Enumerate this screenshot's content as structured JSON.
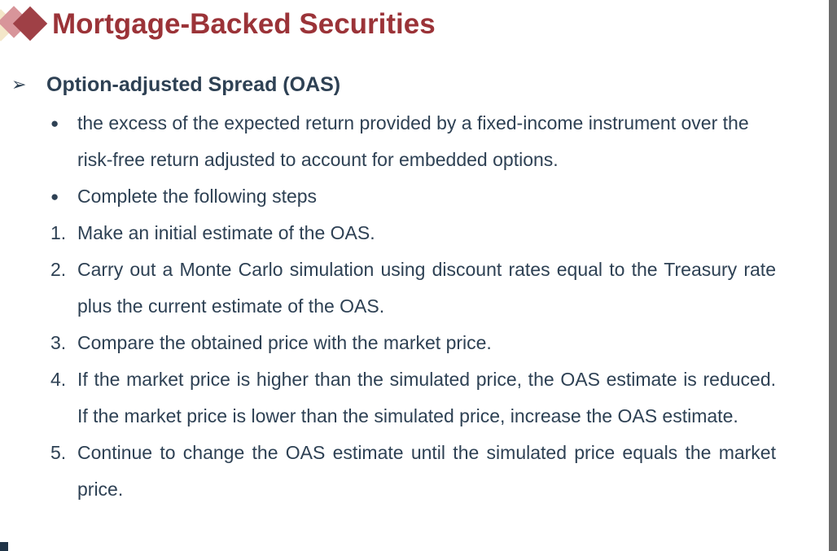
{
  "slide": {
    "title": "Mortgage-Backed Securities",
    "subheading": {
      "marker": "➢",
      "text": "Option-adjusted Spread (OAS)"
    },
    "list": [
      {
        "marker": "●",
        "text": "the excess of the expected return provided by a fixed-income instrument over the risk-free return adjusted to account for embedded options."
      },
      {
        "marker": "●",
        "text": "Complete the following steps"
      },
      {
        "marker": "1.",
        "text": "Make an initial estimate of the OAS."
      },
      {
        "marker": "2.",
        "text": "Carry out a Monte Carlo simulation using discount rates equal to the Treasury rate plus the current estimate of the OAS."
      },
      {
        "marker": "3.",
        "text": "Compare the obtained price with the market price."
      },
      {
        "marker": "4.",
        "text": "If the market price is higher than the simulated price, the OAS estimate is reduced. If the market price is lower than the simulated price, increase the OAS estimate."
      },
      {
        "marker": "5.",
        "text": "Continue to change the OAS estimate until the simulated price equals the market price."
      }
    ],
    "colors": {
      "title_red": "#9B3338",
      "diamond_red": "#9F4046",
      "diamond_pink": "#D8959A",
      "diamond_cream": "#F4E7C9",
      "body_navy": "#2E4154",
      "right_bar_gray": "#6A6A6A",
      "corner_mark_navy": "#203448"
    }
  }
}
